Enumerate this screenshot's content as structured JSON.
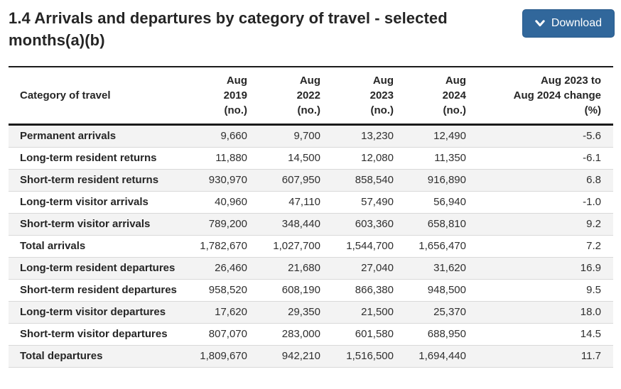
{
  "header": {
    "title": "1.4 Arrivals and departures by category of travel - selected months(a)(b)",
    "download_label": "Download",
    "download_icon": "chevron-down"
  },
  "colors": {
    "accent_button": "#31679b",
    "row_stripe": "#f3f3f3",
    "rule_dark": "#1a1a1a",
    "rule_light": "#d9d9d9",
    "text": "#262626"
  },
  "table": {
    "columns": [
      {
        "id": "category",
        "lines": [
          "Category of travel"
        ]
      },
      {
        "id": "aug-2019",
        "lines": [
          "Aug",
          "2019",
          "(no.)"
        ]
      },
      {
        "id": "aug-2022",
        "lines": [
          "Aug",
          "2022",
          "(no.)"
        ]
      },
      {
        "id": "aug-2023",
        "lines": [
          "Aug",
          "2023",
          "(no.)"
        ]
      },
      {
        "id": "aug-2024",
        "lines": [
          "Aug",
          "2024",
          "(no.)"
        ]
      },
      {
        "id": "change",
        "lines": [
          "Aug 2023 to",
          "Aug 2024 change",
          "(%)"
        ]
      }
    ],
    "rows": [
      {
        "category": "Permanent arrivals",
        "values": [
          "9,660",
          "9,700",
          "13,230",
          "12,490",
          "-5.6"
        ]
      },
      {
        "category": "Long-term resident returns",
        "values": [
          "11,880",
          "14,500",
          "12,080",
          "11,350",
          "-6.1"
        ]
      },
      {
        "category": "Short-term resident returns",
        "values": [
          "930,970",
          "607,950",
          "858,540",
          "916,890",
          "6.8"
        ]
      },
      {
        "category": "Long-term visitor arrivals",
        "values": [
          "40,960",
          "47,110",
          "57,490",
          "56,940",
          "-1.0"
        ]
      },
      {
        "category": "Short-term visitor arrivals",
        "values": [
          "789,200",
          "348,440",
          "603,360",
          "658,810",
          "9.2"
        ]
      },
      {
        "category": "Total arrivals",
        "values": [
          "1,782,670",
          "1,027,700",
          "1,544,700",
          "1,656,470",
          "7.2"
        ]
      },
      {
        "category": "Long-term resident departures",
        "values": [
          "26,460",
          "21,680",
          "27,040",
          "31,620",
          "16.9"
        ]
      },
      {
        "category": "Short-term resident departures",
        "values": [
          "958,520",
          "608,190",
          "866,380",
          "948,500",
          "9.5"
        ]
      },
      {
        "category": "Long-term visitor departures",
        "values": [
          "17,620",
          "29,350",
          "21,500",
          "25,370",
          "18.0"
        ]
      },
      {
        "category": "Short-term visitor departures",
        "values": [
          "807,070",
          "283,000",
          "601,580",
          "688,950",
          "14.5"
        ]
      },
      {
        "category": "Total departures",
        "values": [
          "1,809,670",
          "942,210",
          "1,516,500",
          "1,694,440",
          "11.7"
        ]
      }
    ]
  }
}
